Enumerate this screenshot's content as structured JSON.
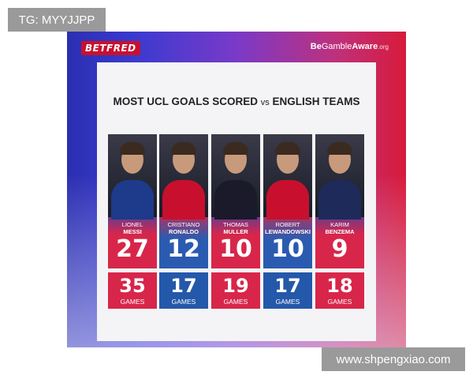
{
  "watermarks": {
    "top_left": "TG: MYYJJPP",
    "bottom_right": "www.shpengxiao.com"
  },
  "header": {
    "brand": "BETFRED",
    "gamble_be": "Be",
    "gamble_mid": "Gamble",
    "gamble_aware": "Aware",
    "gamble_org": ".org"
  },
  "title": {
    "main": "MOST UCL GOALS SCORED",
    "vs": "vs",
    "rest": "ENGLISH TEAMS"
  },
  "colors": {
    "red": "#d8264a",
    "blue": "#2458aa"
  },
  "players": [
    {
      "first": "LIONEL",
      "last": "MESSI",
      "goals": "27",
      "games": "35",
      "games_label": "GAMES",
      "top_color": "red",
      "bottom_color": "red"
    },
    {
      "first": "CRISTIANO",
      "last": "RONALDO",
      "goals": "12",
      "games": "17",
      "games_label": "GAMES",
      "top_color": "blue",
      "bottom_color": "blue"
    },
    {
      "first": "THOMAS",
      "last": "MULLER",
      "goals": "10",
      "games": "19",
      "games_label": "GAMES",
      "top_color": "red",
      "bottom_color": "red"
    },
    {
      "first": "ROBERT",
      "last": "LEWANDOWSKI",
      "goals": "10",
      "games": "17",
      "games_label": "GAMES",
      "top_color": "blue",
      "bottom_color": "blue"
    },
    {
      "first": "KARIM",
      "last": "BENZEMA",
      "goals": "9",
      "games": "18",
      "games_label": "GAMES",
      "top_color": "red",
      "bottom_color": "red"
    }
  ]
}
